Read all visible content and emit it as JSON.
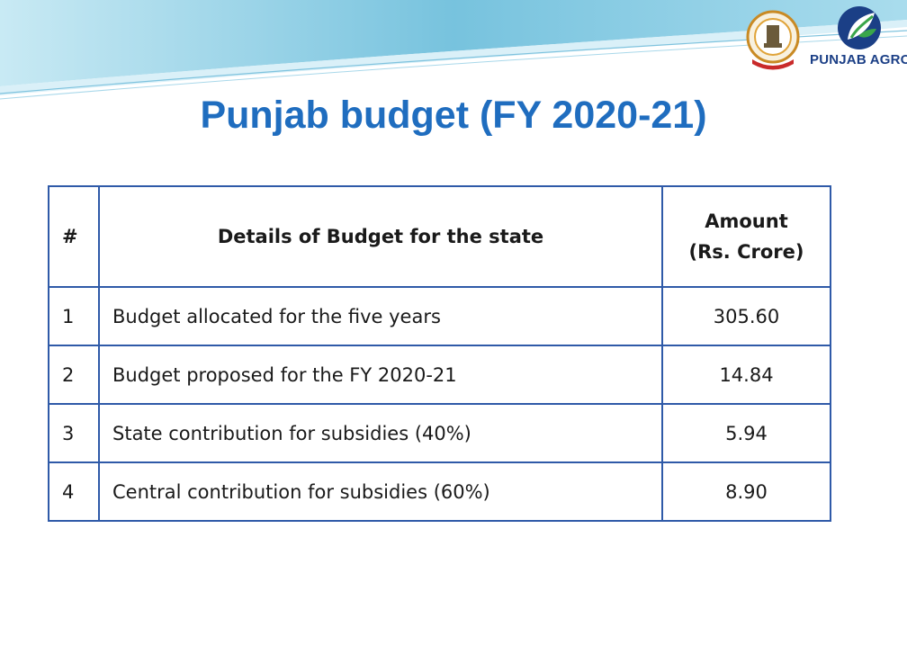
{
  "title": "Punjab budget (FY 2020-21)",
  "logos": {
    "emblem_icon": "punjab-government-emblem-icon",
    "agro_icon": "punjab-agro-leaf-icon",
    "agro_text": "PUNJAB AGRO"
  },
  "table": {
    "headers": {
      "num": "#",
      "detail": "Details of Budget for the state",
      "amount_line1": "Amount",
      "amount_line2": "(Rs. Crore)"
    },
    "rows": [
      {
        "num": "1",
        "detail": "Budget allocated for the five years",
        "amount": "305.60"
      },
      {
        "num": "2",
        "detail": "Budget proposed for the FY 2020-21",
        "amount": "14.84"
      },
      {
        "num": "3",
        "detail": "State contribution for subsidies (40%)",
        "amount": "5.94"
      },
      {
        "num": "4",
        "detail": "Central contribution for subsidies (60%)",
        "amount": "8.90"
      }
    ]
  },
  "colors": {
    "title": "#1f6dbf",
    "border": "#2f5aa8",
    "wave": "#5fb8d8"
  }
}
